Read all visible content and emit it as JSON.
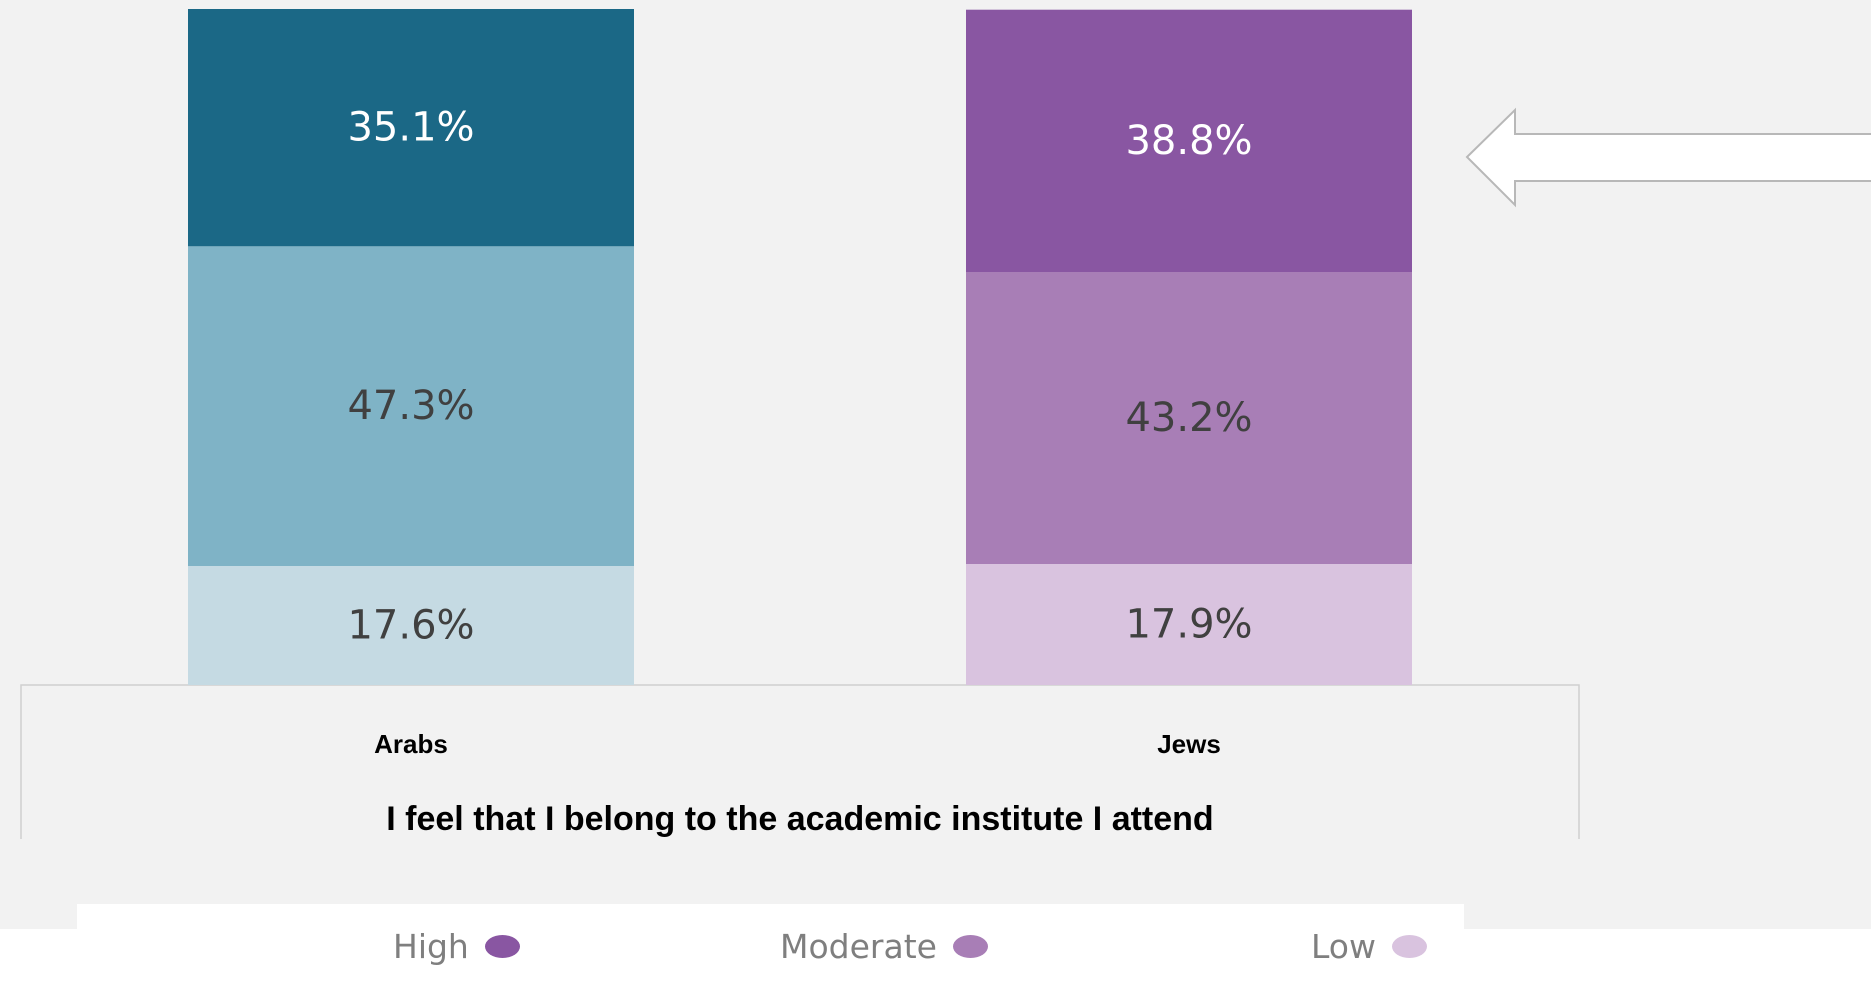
{
  "chart_data": {
    "type": "bar",
    "stacked": true,
    "normalized_percent": true,
    "title": "I feel  that I belong to the academic institute I attend",
    "categories": [
      "Arabs",
      "Jews"
    ],
    "series": [
      {
        "name": "Low",
        "values": [
          17.6,
          17.9
        ],
        "labels": [
          "17.6%",
          "17.9%"
        ]
      },
      {
        "name": "Moderate",
        "values": [
          47.3,
          43.2
        ],
        "labels": [
          "47.3%",
          "43.2%"
        ]
      },
      {
        "name": "High",
        "values": [
          35.1,
          38.8
        ],
        "labels": [
          "35.1%",
          "38.8%"
        ]
      }
    ],
    "colors": {
      "Arabs": {
        "High": "#1b6886",
        "Moderate": "#7fb3c6",
        "Low": "#c5dae3"
      },
      "Jews": {
        "High": "#8956a2",
        "Moderate": "#a87eb6",
        "Low": "#d9c3df"
      }
    },
    "label_colors": {
      "High": "#ffffff",
      "Moderate": "#404040",
      "Low": "#404040"
    },
    "ylim": [
      0,
      100
    ],
    "grid": false,
    "legend_position": "bottom",
    "annotation": "left-pointing arrow beside the High segment of Jews"
  },
  "legend": {
    "items": [
      {
        "label": "High",
        "color": "#8956a2"
      },
      {
        "label": "Moderate",
        "color": "#a87eb6"
      },
      {
        "label": "Low",
        "color": "#d9c3df"
      }
    ]
  }
}
